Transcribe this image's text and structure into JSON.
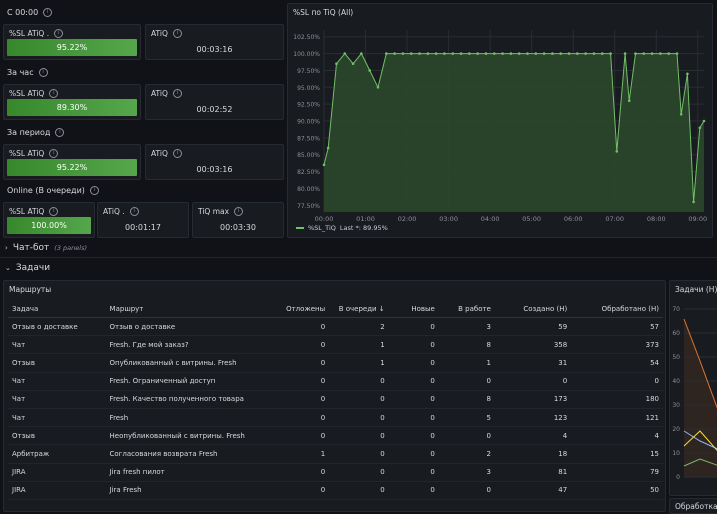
{
  "stat_rows": [
    {
      "title": "С 00:00",
      "sl_label": "%SL ATiQ .",
      "sl_value": "95.22%",
      "sl_fill": 0.9522,
      "atiq_label": "ATiQ",
      "atiq_value": "00:03:16"
    },
    {
      "title": "За час",
      "sl_label": "%SL ATiQ",
      "sl_value": "89.30%",
      "sl_fill": 0.893,
      "atiq_label": "ATiQ",
      "atiq_value": "00:02:52"
    },
    {
      "title": "За период",
      "sl_label": "%SL ATiQ",
      "sl_value": "95.22%",
      "sl_fill": 0.9522,
      "atiq_label": "ATiQ",
      "atiq_value": "00:03:16"
    }
  ],
  "online": {
    "title": "Online (В очереди)",
    "sl_label": "%SL ATiQ",
    "sl_value": "100.00%",
    "sl_fill": 1.0,
    "atiq_label": "ATiQ .",
    "atiq_value": "00:01:17",
    "tiqmax_label": "TiQ max",
    "tiqmax_value": "00:03:30"
  },
  "sl_chart": {
    "title": "%SL по TiQ (All)",
    "legend_label": "%SL_TiQ",
    "legend_last": "Last *: 89.95%",
    "colors": {
      "line": "#73bf69",
      "fill": "#2c4a2b"
    }
  },
  "chart_data": {
    "type": "area",
    "title": "%SL по TiQ (All)",
    "y_ticks": [
      "102.50%",
      "100.00%",
      "97.50%",
      "95.00%",
      "92.50%",
      "90.00%",
      "87.50%",
      "85.00%",
      "82.50%",
      "80.00%",
      "77.50%"
    ],
    "x_ticks": [
      "00:00",
      "01:00",
      "02:00",
      "03:00",
      "04:00",
      "05:00",
      "06:00",
      "07:00",
      "08:00",
      "09:00"
    ],
    "ylim": [
      76.5,
      103.5
    ],
    "xlim": [
      0,
      9.15
    ],
    "series": [
      {
        "name": "%SL_TiQ",
        "x": [
          0,
          0.1,
          0.3,
          0.5,
          0.7,
          0.9,
          1.1,
          1.3,
          1.5,
          1.7,
          1.9,
          2.1,
          2.3,
          2.5,
          2.7,
          2.9,
          3.1,
          3.3,
          3.5,
          3.7,
          3.9,
          4.1,
          4.3,
          4.5,
          4.7,
          4.9,
          5.1,
          5.3,
          5.5,
          5.7,
          5.9,
          6.1,
          6.3,
          6.5,
          6.7,
          6.9,
          7.05,
          7.25,
          7.35,
          7.5,
          7.7,
          7.9,
          8.1,
          8.3,
          8.5,
          8.6,
          8.75,
          8.9,
          9.05,
          9.15
        ],
        "values": [
          83.5,
          86,
          98.5,
          100,
          98.5,
          100,
          97.5,
          95,
          100,
          100,
          100,
          100,
          100,
          100,
          100,
          100,
          100,
          100,
          100,
          100,
          100,
          100,
          100,
          100,
          100,
          100,
          100,
          100,
          100,
          100,
          100,
          100,
          100,
          100,
          100,
          100,
          85.5,
          100,
          93,
          100,
          100,
          100,
          100,
          100,
          100,
          91,
          97,
          78,
          89,
          90
        ]
      }
    ]
  },
  "chat_bot": {
    "label": "Чат-бот",
    "sub": "(3 panels)"
  },
  "tasks_section": {
    "label": "Задачи"
  },
  "routes": {
    "title": "Маршруты",
    "columns": [
      "Задача",
      "Маршрут",
      "Отложены",
      "В очереди ↓",
      "Новые",
      "В работе",
      "Создано (Н)",
      "Обработано (Н)"
    ],
    "rows": [
      [
        "Отзыв о доставке",
        "Отзыв о доставке",
        "0",
        "2",
        "0",
        "3",
        "59",
        "57"
      ],
      [
        "Чат",
        "Fresh. Где мой заказ?",
        "0",
        "1",
        "0",
        "8",
        "358",
        "373"
      ],
      [
        "Отзыв",
        "Опубликованный с витрины. Fresh",
        "0",
        "1",
        "0",
        "1",
        "31",
        "54"
      ],
      [
        "Чат",
        "Fresh. Ограниченный доступ",
        "0",
        "0",
        "0",
        "0",
        "0",
        "0"
      ],
      [
        "Чат",
        "Fresh. Качество полученного товара",
        "0",
        "0",
        "0",
        "8",
        "173",
        "180"
      ],
      [
        "Чат",
        "Fresh",
        "0",
        "0",
        "0",
        "5",
        "123",
        "121"
      ],
      [
        "Отзыв",
        "Неопубликованный с витрины. Fresh",
        "0",
        "0",
        "0",
        "0",
        "4",
        "4"
      ],
      [
        "Арбитраж",
        "Согласования возврата Fresh",
        "1",
        "0",
        "0",
        "2",
        "18",
        "15"
      ],
      [
        "JIRA",
        "Jira fresh пилот",
        "0",
        "0",
        "0",
        "3",
        "81",
        "79"
      ],
      [
        "JIRA",
        "Jira Fresh",
        "0",
        "0",
        "0",
        "0",
        "47",
        "50"
      ]
    ]
  },
  "tasks_panel": {
    "title": "Задачи (Н)",
    "y_ticks": [
      "70",
      "60",
      "50",
      "40",
      "30",
      "20",
      "10",
      "0"
    ]
  },
  "processing_panel": {
    "title": "Обработка"
  }
}
